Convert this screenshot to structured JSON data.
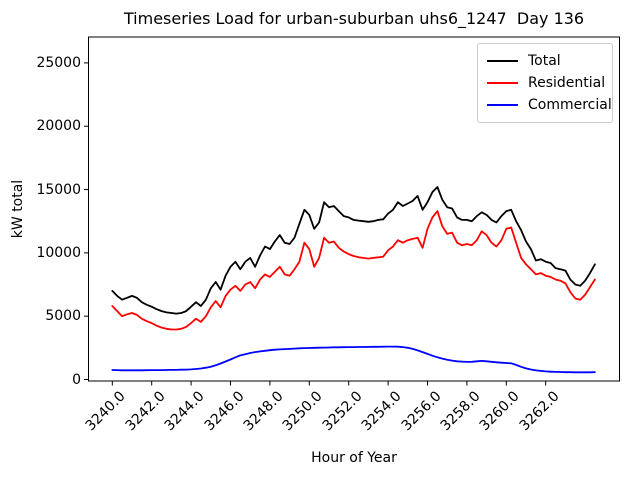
{
  "title": "Timeseries Load for urban-suburban uhs6_1247  Day 136",
  "legend": {
    "position": "upper right",
    "entries": [
      {
        "label": "Total",
        "color": "#000000"
      },
      {
        "label": "Residential",
        "color": "#ff0000"
      },
      {
        "label": "Commercial",
        "color": "#0000ff"
      }
    ]
  },
  "chart_data": {
    "type": "line",
    "title": "Timeseries Load for urban-suburban uhs6_1247  Day 136",
    "xlabel": "Hour of Year",
    "ylabel": "kW total",
    "grid": false,
    "legend_position": "upper right",
    "xlim": [
      3238.8,
      3265.7
    ],
    "ylim": [
      0,
      27000
    ],
    "x_ticks": [
      3240,
      3242,
      3244,
      3246,
      3248,
      3250,
      3252,
      3254,
      3256,
      3258,
      3260,
      3262
    ],
    "x_tick_labels": [
      "3240.0",
      "3242.0",
      "3244.0",
      "3246.0",
      "3248.0",
      "3250.0",
      "3252.0",
      "3254.0",
      "3256.0",
      "3258.0",
      "3260.0",
      "3262.0"
    ],
    "y_ticks": [
      0,
      5000,
      10000,
      15000,
      20000,
      25000
    ],
    "y_tick_labels": [
      "0",
      "5000",
      "10000",
      "15000",
      "20000",
      "25000"
    ],
    "x": [
      3240.0,
      3240.25,
      3240.5,
      3240.75,
      3241.0,
      3241.25,
      3241.5,
      3241.75,
      3242.0,
      3242.25,
      3242.5,
      3242.75,
      3243.0,
      3243.25,
      3243.5,
      3243.75,
      3244.0,
      3244.25,
      3244.5,
      3244.75,
      3245.0,
      3245.25,
      3245.5,
      3245.75,
      3246.0,
      3246.25,
      3246.5,
      3246.75,
      3247.0,
      3247.25,
      3247.5,
      3247.75,
      3248.0,
      3248.25,
      3248.5,
      3248.75,
      3249.0,
      3249.25,
      3249.5,
      3249.75,
      3250.0,
      3250.25,
      3250.5,
      3250.75,
      3251.0,
      3251.25,
      3251.5,
      3251.75,
      3252.0,
      3252.25,
      3252.5,
      3252.75,
      3253.0,
      3253.25,
      3253.5,
      3253.75,
      3254.0,
      3254.25,
      3254.5,
      3254.75,
      3255.0,
      3255.25,
      3255.5,
      3255.75,
      3256.0,
      3256.25,
      3256.5,
      3256.75,
      3257.0,
      3257.25,
      3257.5,
      3257.75,
      3258.0,
      3258.25,
      3258.5,
      3258.75,
      3259.0,
      3259.25,
      3259.5,
      3259.75,
      3260.0,
      3260.25,
      3260.5,
      3260.75,
      3261.0,
      3261.25,
      3261.5,
      3261.75,
      3262.0,
      3262.25,
      3262.5,
      3262.75,
      3263.0,
      3263.25,
      3263.5,
      3263.75,
      3264.0,
      3264.25,
      3264.5
    ],
    "series": [
      {
        "name": "Total",
        "color": "#000000",
        "values": [
          7000,
          6600,
          6300,
          6450,
          6600,
          6450,
          6100,
          5900,
          5750,
          5550,
          5400,
          5300,
          5250,
          5200,
          5250,
          5400,
          5750,
          6100,
          5800,
          6300,
          7200,
          7700,
          7100,
          8200,
          8900,
          9300,
          8700,
          9300,
          9600,
          8900,
          9800,
          10500,
          10300,
          10900,
          11400,
          10800,
          10700,
          11200,
          12300,
          13400,
          13000,
          11900,
          12400,
          14000,
          13600,
          13700,
          13300,
          12900,
          12800,
          12600,
          12550,
          12500,
          12450,
          12500,
          12600,
          12650,
          13100,
          13400,
          14000,
          13700,
          13900,
          14100,
          14500,
          13400,
          14000,
          14800,
          15200,
          14200,
          13600,
          13500,
          12800,
          12600,
          12600,
          12500,
          12900,
          13200,
          13000,
          12600,
          12400,
          12900,
          13300,
          13400,
          12500,
          11800,
          10900,
          10300,
          9400,
          9500,
          9300,
          9200,
          8800,
          8700,
          8600,
          7900,
          7500,
          7400,
          7800,
          8400,
          9100
        ]
      },
      {
        "name": "Residential",
        "color": "#ff0000",
        "values": [
          5800,
          5400,
          5000,
          5150,
          5250,
          5100,
          4800,
          4600,
          4450,
          4250,
          4100,
          4000,
          3950,
          3950,
          4000,
          4150,
          4450,
          4800,
          4550,
          5000,
          5700,
          6200,
          5700,
          6600,
          7100,
          7400,
          7000,
          7500,
          7700,
          7200,
          7900,
          8300,
          8100,
          8500,
          8900,
          8300,
          8200,
          8700,
          9300,
          10800,
          10300,
          8900,
          9600,
          11200,
          10800,
          10900,
          10400,
          10100,
          9900,
          9750,
          9650,
          9600,
          9550,
          9600,
          9650,
          9700,
          10200,
          10500,
          11000,
          10800,
          11000,
          11100,
          11200,
          10400,
          11900,
          12800,
          13300,
          12100,
          11500,
          11600,
          10800,
          10600,
          10700,
          10600,
          11000,
          11700,
          11400,
          10800,
          10500,
          11000,
          11900,
          12000,
          10800,
          9600,
          9100,
          8700,
          8300,
          8400,
          8200,
          8100,
          7900,
          7800,
          7600,
          6900,
          6400,
          6300,
          6700,
          7300,
          7900
        ]
      },
      {
        "name": "Commercial",
        "color": "#0000ff",
        "values": [
          750,
          740,
          730,
          730,
          730,
          730,
          730,
          735,
          740,
          740,
          745,
          750,
          755,
          760,
          770,
          785,
          800,
          830,
          870,
          930,
          1010,
          1120,
          1260,
          1420,
          1580,
          1750,
          1900,
          2000,
          2090,
          2160,
          2220,
          2270,
          2310,
          2350,
          2380,
          2400,
          2420,
          2440,
          2460,
          2480,
          2490,
          2500,
          2510,
          2520,
          2530,
          2540,
          2545,
          2550,
          2555,
          2560,
          2565,
          2570,
          2575,
          2580,
          2585,
          2590,
          2595,
          2600,
          2590,
          2560,
          2500,
          2420,
          2300,
          2160,
          2020,
          1880,
          1750,
          1650,
          1560,
          1490,
          1440,
          1410,
          1390,
          1400,
          1440,
          1470,
          1440,
          1400,
          1360,
          1330,
          1300,
          1280,
          1150,
          1000,
          880,
          790,
          720,
          680,
          640,
          615,
          600,
          590,
          580,
          575,
          570,
          565,
          565,
          570,
          575
        ]
      }
    ]
  }
}
